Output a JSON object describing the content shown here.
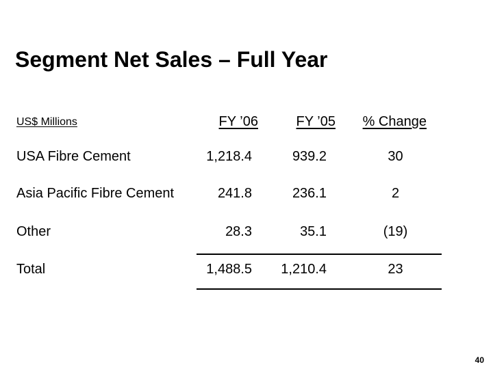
{
  "slide": {
    "title": "Segment Net Sales – Full Year",
    "page_number": "40"
  },
  "table": {
    "unit_label": "US$ Millions",
    "columns": [
      "FY ’06",
      "FY ’05",
      "% Change"
    ],
    "rows": [
      {
        "label": "USA Fibre Cement",
        "fy06": "1,218.4",
        "fy05": "939.2",
        "change": "30"
      },
      {
        "label": "Asia Pacific Fibre Cement",
        "fy06": "241.8",
        "fy05": "236.1",
        "change": "2"
      },
      {
        "label": "Other",
        "fy06": "28.3",
        "fy05": "35.1",
        "change": "(19)"
      }
    ],
    "total": {
      "label": "Total",
      "fy06": "1,488.5",
      "fy05": "1,210.4",
      "change": "23"
    }
  },
  "colors": {
    "text": "#000000",
    "background": "#ffffff"
  }
}
